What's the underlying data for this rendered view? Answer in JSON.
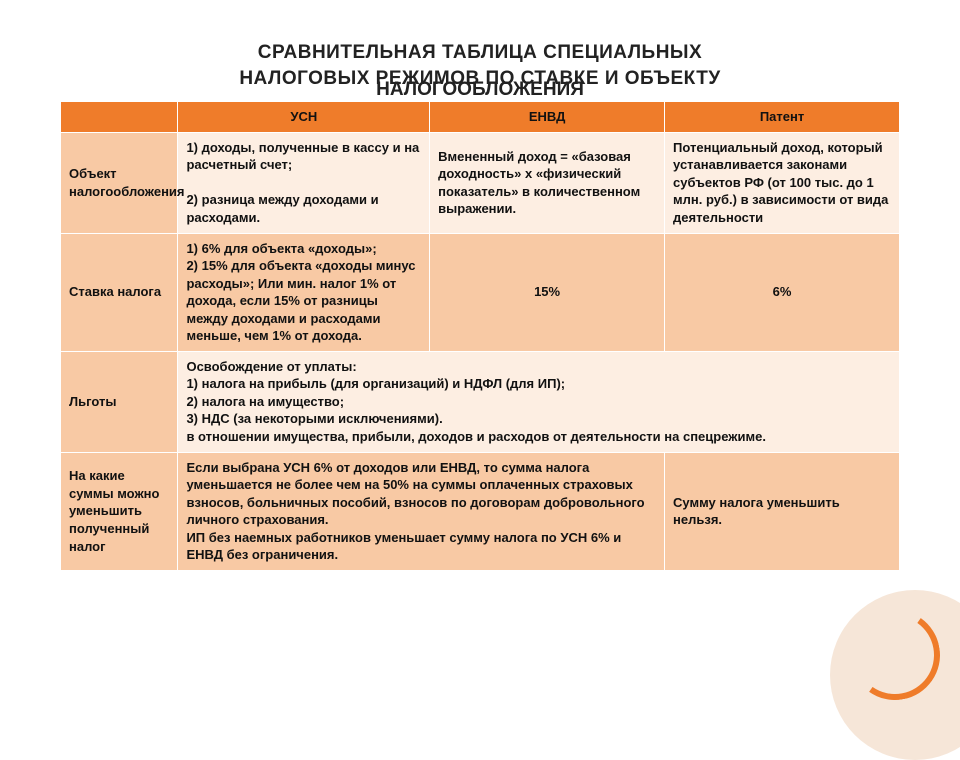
{
  "title_line1": "СРАВНИТЕЛЬНАЯ ТАБЛИЦА СПЕЦИАЛЬНЫХ",
  "title_line2": "НАЛОГОВЫХ РЕЖИМОВ ПО СТАВКЕ И ОБЪЕКТУ",
  "title_line3_overlay": "НАЛОГООБЛОЖЕНИЯ",
  "colors": {
    "header_bg": "#ef7c2a",
    "label_bg": "#f8c9a4",
    "cell_light": "#fdeee2",
    "cell_mid": "#f8c9a4",
    "text": "#111111",
    "background": "#ffffff",
    "corner_fill": "#f6e6d8",
    "corner_ring": "#ef7c2a"
  },
  "typography": {
    "title_fontsize": 19,
    "title_weight": "bold",
    "cell_fontsize": 13,
    "font_family": "Arial"
  },
  "columns": [
    "",
    "УСН",
    "ЕНВД",
    "Патент"
  ],
  "column_widths_pct": [
    14,
    30,
    28,
    28
  ],
  "rows": [
    {
      "label": "Объект налогообложения",
      "usn": "1) доходы, полученные в кассу и на расчетный счет;\n\n2) разница между доходами и расходами.",
      "envd": "Вмененный доход = «базовая доходность» х «физический показатель» в количественном выражении.",
      "patent": "Потенциальный доход, который устанавливается законами субъектов РФ (от 100 тыс. до 1 млн. руб.) в зависимости от вида деятельности",
      "row_bg": "light"
    },
    {
      "label": "Ставка налога",
      "usn": "1) 6% для объекта «доходы»;\n2) 15% для объекта «доходы минус расходы»; Или мин. налог 1% от дохода, если 15% от разницы между доходами и расходами меньше, чем 1% от дохода.",
      "envd": "15%",
      "patent": "6%",
      "row_bg": "mid"
    },
    {
      "label": "Льготы",
      "merged": "Освобождение от уплаты:\n1) налога на прибыль (для организаций) и НДФЛ (для ИП);\n2) налога на имущество;\n3) НДС (за некоторыми исключениями).\nв отношении имущества, прибыли, доходов и расходов от деятельности на спецрежиме.",
      "row_bg": "light"
    },
    {
      "label": "На какие суммы можно уменьшить полученный налог",
      "usn_envd_merged": "Если выбрана УСН 6% от доходов или ЕНВД, то сумма налога уменьшается не более чем на 50% на суммы оплаченных страховых взносов, больничных пособий, взносов по договорам добровольного личного страхования.\nИП без наемных работников уменьшает сумму налога по УСН 6% и ЕНВД без ограничения.",
      "patent": "Сумму налога уменьшить нельзя.",
      "row_bg": "mid"
    }
  ]
}
